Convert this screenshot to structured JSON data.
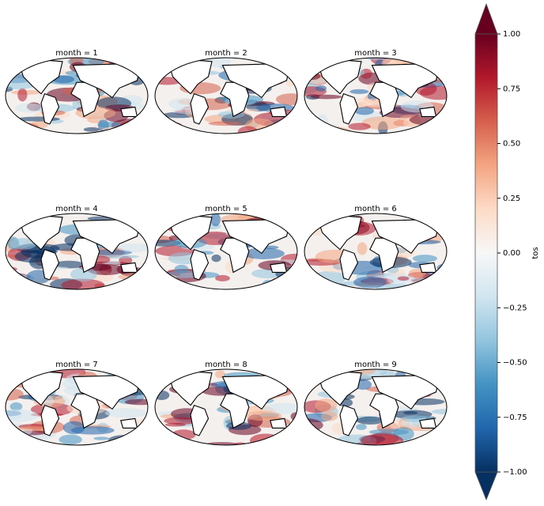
{
  "chart_data": {
    "type": "facet-map",
    "panels": [
      {
        "title": "month = 1"
      },
      {
        "title": "month = 2"
      },
      {
        "title": "month = 3"
      },
      {
        "title": "month = 4"
      },
      {
        "title": "month = 5"
      },
      {
        "title": "month = 6"
      },
      {
        "title": "month = 7"
      },
      {
        "title": "month = 8"
      },
      {
        "title": "month = 9"
      }
    ],
    "colorbar": {
      "label": "tos",
      "colormap": "RdBu_r",
      "extend": "both",
      "lim": [
        -1,
        1
      ],
      "ticks": [
        {
          "value": 1,
          "label": "1.00"
        },
        {
          "value": 0.75,
          "label": "0.75"
        },
        {
          "value": 0.5,
          "label": "0.50"
        },
        {
          "value": 0.25,
          "label": "0.25"
        },
        {
          "value": 0,
          "label": "0.00"
        },
        {
          "value": -0.25,
          "label": "−0.25"
        },
        {
          "value": -0.5,
          "label": "−0.50"
        },
        {
          "value": -0.75,
          "label": "−0.75"
        },
        {
          "value": -1,
          "label": "−1.00"
        }
      ]
    }
  }
}
